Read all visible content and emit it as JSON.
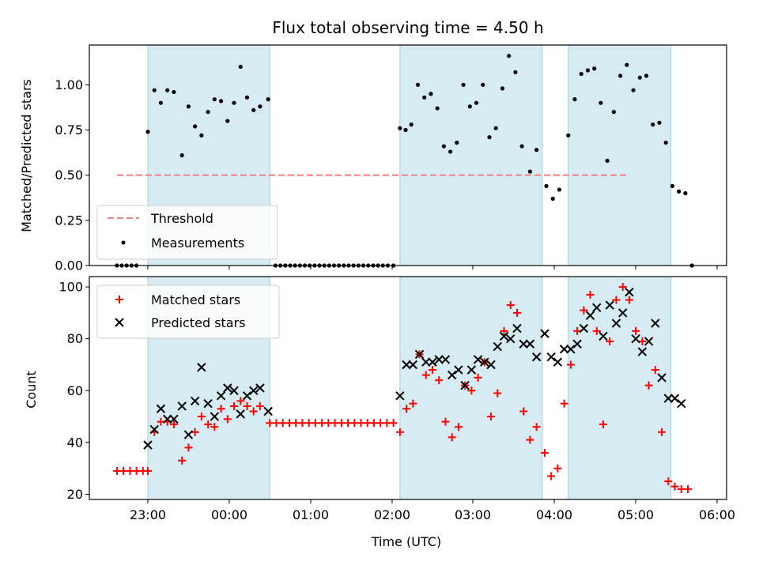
{
  "chart_data": [
    {
      "type": "scatter",
      "title": "Flux total observing time = 4.50 h",
      "xlabel": "",
      "ylabel": "Matched/Predicted stars",
      "ylim": [
        0,
        1.22
      ],
      "yticks": [
        0.0,
        0.25,
        0.5,
        0.75,
        1.0
      ],
      "ytick_labels": [
        "0.00",
        "0.25",
        "0.50",
        "0.75",
        "1.00"
      ],
      "xlim_hours": [
        -0.72,
        7.08
      ],
      "xticks": [
        "23:00",
        "00:00",
        "01:00",
        "02:00",
        "03:00",
        "04:00",
        "05:00",
        "06:00"
      ],
      "legend_position": "lower-left",
      "legend": [
        "Threshold",
        "Measurements"
      ],
      "threshold": {
        "name": "Threshold",
        "y": 0.5,
        "x_range": [
          -0.38,
          5.9
        ],
        "color": "#f07f7f"
      },
      "observing_windows_hours": [
        [
          0,
          1.5
        ],
        [
          3.1,
          4.85
        ],
        [
          5.17,
          6.43
        ]
      ],
      "series": [
        {
          "name": "Measurements",
          "color": "#000000",
          "points": [
            [
              -0.38,
              0
            ],
            [
              -0.32,
              0
            ],
            [
              -0.26,
              0
            ],
            [
              -0.2,
              0
            ],
            [
              -0.14,
              0
            ],
            [
              0.0,
              0.74
            ],
            [
              0.08,
              0.97
            ],
            [
              0.16,
              0.9
            ],
            [
              0.24,
              0.97
            ],
            [
              0.32,
              0.96
            ],
            [
              0.42,
              0.61
            ],
            [
              0.5,
              0.88
            ],
            [
              0.58,
              0.77
            ],
            [
              0.66,
              0.72
            ],
            [
              0.74,
              0.85
            ],
            [
              0.82,
              0.92
            ],
            [
              0.9,
              0.91
            ],
            [
              0.98,
              0.8
            ],
            [
              1.06,
              0.9
            ],
            [
              1.14,
              1.1
            ],
            [
              1.22,
              0.93
            ],
            [
              1.3,
              0.86
            ],
            [
              1.38,
              0.88
            ],
            [
              1.48,
              0.92
            ],
            [
              1.57,
              0
            ],
            [
              1.63,
              0
            ],
            [
              1.69,
              0
            ],
            [
              1.75,
              0
            ],
            [
              1.81,
              0
            ],
            [
              1.87,
              0
            ],
            [
              1.93,
              0
            ],
            [
              1.99,
              0
            ],
            [
              2.05,
              0
            ],
            [
              2.11,
              0
            ],
            [
              2.17,
              0
            ],
            [
              2.23,
              0
            ],
            [
              2.29,
              0
            ],
            [
              2.35,
              0
            ],
            [
              2.41,
              0
            ],
            [
              2.47,
              0
            ],
            [
              2.53,
              0
            ],
            [
              2.59,
              0
            ],
            [
              2.65,
              0
            ],
            [
              2.71,
              0
            ],
            [
              2.77,
              0
            ],
            [
              2.83,
              0
            ],
            [
              2.89,
              0
            ],
            [
              2.95,
              0
            ],
            [
              3.02,
              0
            ],
            [
              3.1,
              0.76
            ],
            [
              3.17,
              0.75
            ],
            [
              3.24,
              0.78
            ],
            [
              3.32,
              1.0
            ],
            [
              3.4,
              0.93
            ],
            [
              3.48,
              0.95
            ],
            [
              3.56,
              0.87
            ],
            [
              3.64,
              0.66
            ],
            [
              3.72,
              0.63
            ],
            [
              3.8,
              0.68
            ],
            [
              3.88,
              1.0
            ],
            [
              3.96,
              0.88
            ],
            [
              4.04,
              0.9
            ],
            [
              4.12,
              1.0
            ],
            [
              4.2,
              0.71
            ],
            [
              4.28,
              0.76
            ],
            [
              4.36,
              0.98
            ],
            [
              4.44,
              1.16
            ],
            [
              4.52,
              1.07
            ],
            [
              4.6,
              0.66
            ],
            [
              4.7,
              0.52
            ],
            [
              4.78,
              0.64
            ],
            [
              4.9,
              0.44
            ],
            [
              4.98,
              0.37
            ],
            [
              5.06,
              0.42
            ],
            [
              5.17,
              0.72
            ],
            [
              5.25,
              0.92
            ],
            [
              5.33,
              1.06
            ],
            [
              5.41,
              1.08
            ],
            [
              5.49,
              1.09
            ],
            [
              5.57,
              0.9
            ],
            [
              5.65,
              0.58
            ],
            [
              5.73,
              0.85
            ],
            [
              5.81,
              1.05
            ],
            [
              5.89,
              1.11
            ],
            [
              5.97,
              0.97
            ],
            [
              6.05,
              1.04
            ],
            [
              6.13,
              1.05
            ],
            [
              6.21,
              0.78
            ],
            [
              6.29,
              0.79
            ],
            [
              6.37,
              0.68
            ],
            [
              6.45,
              0.44
            ],
            [
              6.53,
              0.41
            ],
            [
              6.61,
              0.4
            ],
            [
              6.69,
              0
            ]
          ]
        }
      ]
    },
    {
      "type": "scatter",
      "title": "",
      "xlabel": "Time (UTC)",
      "ylabel": "Count",
      "ylim": [
        18,
        104
      ],
      "yticks": [
        20,
        40,
        60,
        80,
        100
      ],
      "ytick_labels": [
        "20",
        "40",
        "60",
        "80",
        "100"
      ],
      "xlim_hours": [
        -0.72,
        7.08
      ],
      "xticks": [
        "23:00",
        "00:00",
        "01:00",
        "02:00",
        "03:00",
        "04:00",
        "05:00",
        "06:00"
      ],
      "legend_position": "upper-left",
      "legend": [
        "Matched stars",
        "Predicted stars"
      ],
      "observing_windows_hours": [
        [
          0,
          1.5
        ],
        [
          3.1,
          4.85
        ],
        [
          5.17,
          6.43
        ]
      ],
      "series": [
        {
          "name": "Matched stars",
          "marker": "plus",
          "color": "#ff0000",
          "points": [
            [
              -0.38,
              29
            ],
            [
              -0.3,
              29
            ],
            [
              -0.22,
              29
            ],
            [
              -0.14,
              29
            ],
            [
              -0.06,
              29
            ],
            [
              0.0,
              29
            ],
            [
              0.08,
              44
            ],
            [
              0.16,
              48
            ],
            [
              0.24,
              48
            ],
            [
              0.32,
              47
            ],
            [
              0.42,
              33
            ],
            [
              0.5,
              38
            ],
            [
              0.58,
              44
            ],
            [
              0.66,
              50
            ],
            [
              0.74,
              47
            ],
            [
              0.82,
              46
            ],
            [
              0.9,
              53
            ],
            [
              0.98,
              49
            ],
            [
              1.06,
              54
            ],
            [
              1.14,
              56
            ],
            [
              1.22,
              54
            ],
            [
              1.3,
              52
            ],
            [
              1.38,
              54
            ],
            [
              1.5,
              47.5
            ],
            [
              1.58,
              47.5
            ],
            [
              1.66,
              47.5
            ],
            [
              1.74,
              47.5
            ],
            [
              1.82,
              47.5
            ],
            [
              1.9,
              47.5
            ],
            [
              1.98,
              47.5
            ],
            [
              2.06,
              47.5
            ],
            [
              2.14,
              47.5
            ],
            [
              2.22,
              47.5
            ],
            [
              2.3,
              47.5
            ],
            [
              2.38,
              47.5
            ],
            [
              2.46,
              47.5
            ],
            [
              2.54,
              47.5
            ],
            [
              2.62,
              47.5
            ],
            [
              2.7,
              47.5
            ],
            [
              2.78,
              47.5
            ],
            [
              2.86,
              47.5
            ],
            [
              2.94,
              47.5
            ],
            [
              3.02,
              47.5
            ],
            [
              3.1,
              44
            ],
            [
              3.18,
              53
            ],
            [
              3.26,
              55
            ],
            [
              3.34,
              74
            ],
            [
              3.42,
              66
            ],
            [
              3.5,
              68
            ],
            [
              3.58,
              64
            ],
            [
              3.66,
              48
            ],
            [
              3.74,
              42
            ],
            [
              3.82,
              46
            ],
            [
              3.9,
              62
            ],
            [
              3.98,
              60
            ],
            [
              4.06,
              65
            ],
            [
              4.14,
              71
            ],
            [
              4.22,
              50
            ],
            [
              4.3,
              59
            ],
            [
              4.38,
              83
            ],
            [
              4.46,
              93
            ],
            [
              4.54,
              90
            ],
            [
              4.62,
              52
            ],
            [
              4.7,
              41
            ],
            [
              4.78,
              46
            ],
            [
              4.88,
              36
            ],
            [
              4.96,
              27
            ],
            [
              5.04,
              30
            ],
            [
              5.12,
              55
            ],
            [
              5.2,
              70
            ],
            [
              5.28,
              83
            ],
            [
              5.36,
              91
            ],
            [
              5.44,
              97
            ],
            [
              5.52,
              83
            ],
            [
              5.6,
              47
            ],
            [
              5.68,
              79
            ],
            [
              5.76,
              95
            ],
            [
              5.84,
              100
            ],
            [
              5.92,
              95
            ],
            [
              6.0,
              83
            ],
            [
              6.08,
              79
            ],
            [
              6.16,
              62
            ],
            [
              6.24,
              68
            ],
            [
              6.32,
              44
            ],
            [
              6.4,
              25
            ],
            [
              6.48,
              23
            ],
            [
              6.56,
              22
            ],
            [
              6.64,
              22
            ]
          ]
        },
        {
          "name": "Predicted stars",
          "marker": "x",
          "color": "#000000",
          "points": [
            [
              0.0,
              39
            ],
            [
              0.08,
              45
            ],
            [
              0.16,
              53
            ],
            [
              0.24,
              49
            ],
            [
              0.32,
              49
            ],
            [
              0.42,
              54
            ],
            [
              0.5,
              43
            ],
            [
              0.58,
              56
            ],
            [
              0.66,
              69
            ],
            [
              0.74,
              55
            ],
            [
              0.82,
              50
            ],
            [
              0.9,
              58
            ],
            [
              0.98,
              61
            ],
            [
              1.06,
              60
            ],
            [
              1.14,
              51
            ],
            [
              1.22,
              58
            ],
            [
              1.3,
              60
            ],
            [
              1.38,
              61
            ],
            [
              1.48,
              52
            ],
            [
              3.1,
              58
            ],
            [
              3.18,
              70
            ],
            [
              3.26,
              70
            ],
            [
              3.34,
              74
            ],
            [
              3.42,
              71
            ],
            [
              3.5,
              71
            ],
            [
              3.58,
              72
            ],
            [
              3.66,
              72
            ],
            [
              3.74,
              66
            ],
            [
              3.82,
              68
            ],
            [
              3.9,
              62
            ],
            [
              3.98,
              68
            ],
            [
              4.06,
              72
            ],
            [
              4.14,
              71
            ],
            [
              4.22,
              70
            ],
            [
              4.3,
              77
            ],
            [
              4.38,
              81
            ],
            [
              4.46,
              80
            ],
            [
              4.54,
              84
            ],
            [
              4.62,
              78
            ],
            [
              4.7,
              78
            ],
            [
              4.78,
              73
            ],
            [
              4.88,
              82
            ],
            [
              4.96,
              73
            ],
            [
              5.04,
              71
            ],
            [
              5.12,
              76
            ],
            [
              5.2,
              76
            ],
            [
              5.28,
              78
            ],
            [
              5.36,
              84
            ],
            [
              5.44,
              89
            ],
            [
              5.52,
              92
            ],
            [
              5.6,
              81
            ],
            [
              5.68,
              93
            ],
            [
              5.76,
              86
            ],
            [
              5.84,
              90
            ],
            [
              5.92,
              98
            ],
            [
              6.0,
              80
            ],
            [
              6.08,
              75
            ],
            [
              6.16,
              79
            ],
            [
              6.24,
              86
            ],
            [
              6.32,
              65
            ],
            [
              6.4,
              57
            ],
            [
              6.48,
              57
            ],
            [
              6.56,
              55
            ]
          ]
        }
      ]
    }
  ]
}
